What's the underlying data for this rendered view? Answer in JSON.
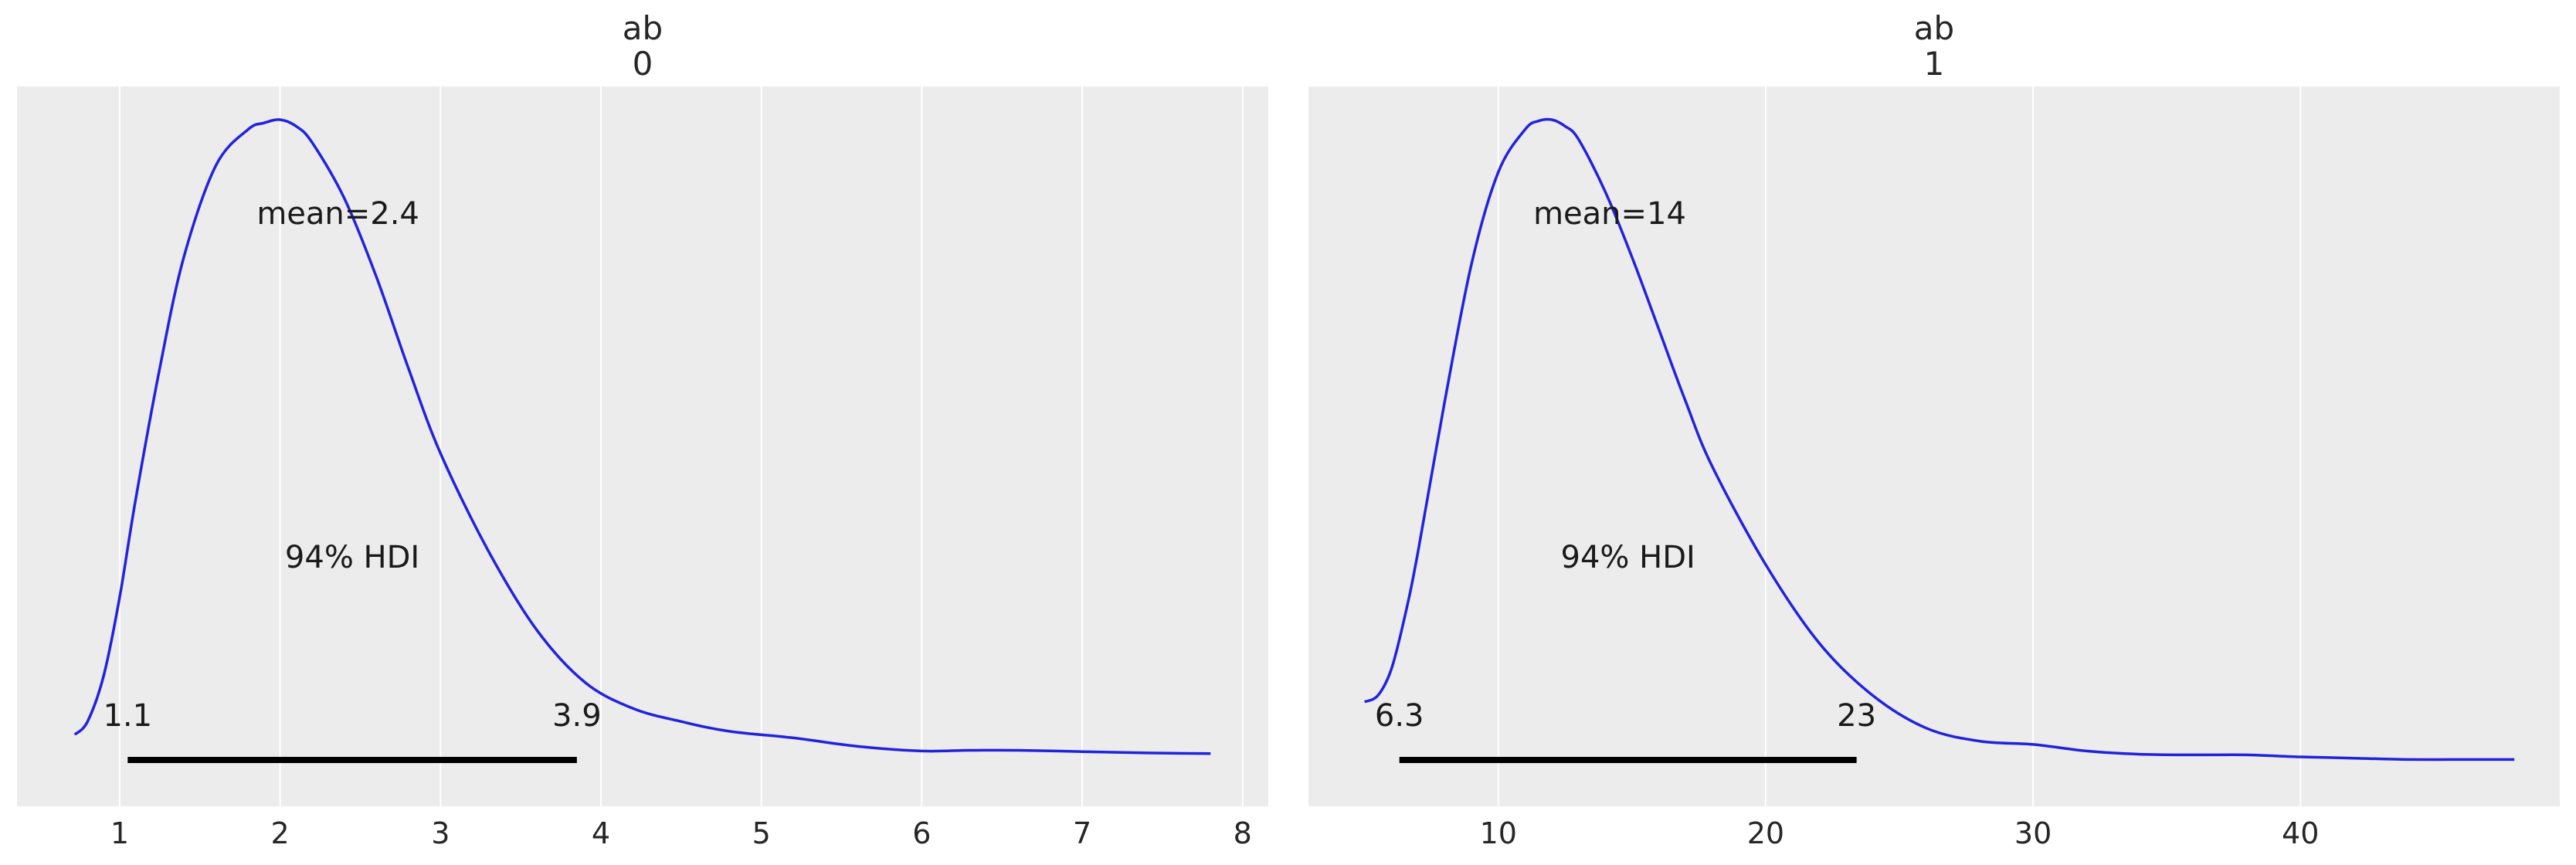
{
  "chart_data": [
    {
      "type": "area",
      "title_lines": [
        "ab",
        "0"
      ],
      "xlim": [
        0.36,
        8.16
      ],
      "xticks": [
        "1",
        "2",
        "3",
        "4",
        "5",
        "6",
        "7",
        "8"
      ],
      "x": [
        0.72,
        0.8,
        0.9,
        1.0,
        1.1,
        1.25,
        1.4,
        1.6,
        1.8,
        1.9,
        2.0,
        2.1,
        2.2,
        2.4,
        2.6,
        2.8,
        3.0,
        3.3,
        3.6,
        3.9,
        4.2,
        4.5,
        4.8,
        5.2,
        5.6,
        6.0,
        6.3,
        6.6,
        7.0,
        7.4,
        7.8
      ],
      "y": [
        0.06,
        0.08,
        0.15,
        0.27,
        0.42,
        0.62,
        0.79,
        0.93,
        0.985,
        0.995,
        1.0,
        0.99,
        0.965,
        0.88,
        0.76,
        0.62,
        0.49,
        0.34,
        0.22,
        0.14,
        0.1,
        0.08,
        0.065,
        0.055,
        0.042,
        0.035,
        0.036,
        0.036,
        0.034,
        0.032,
        0.031
      ],
      "mean_label": "mean=2.4",
      "hdi_label": "94% HDI",
      "hdi": [
        1.05,
        3.85
      ],
      "hdi_low_label": "1.1",
      "hdi_high_label": "3.9",
      "grid": "vertical",
      "line_color": "#2222dd",
      "background": "#ececec"
    },
    {
      "type": "area",
      "title_lines": [
        "ab",
        "1"
      ],
      "xlim": [
        2.9,
        49.7
      ],
      "xticks": [
        "10",
        "20",
        "30",
        "40"
      ],
      "x": [
        5.0,
        5.5,
        6.0,
        6.5,
        7.0,
        8.0,
        9.0,
        10.0,
        11.0,
        11.5,
        12.0,
        12.5,
        13.0,
        14.0,
        15.0,
        16.0,
        17.0,
        18.0,
        20.0,
        22.0,
        24.0,
        26.0,
        28.0,
        30.0,
        32.0,
        34.0,
        36.0,
        38.0,
        40.0,
        42.0,
        44.0,
        46.0,
        48.0
      ],
      "y": [
        0.11,
        0.12,
        0.16,
        0.24,
        0.34,
        0.57,
        0.78,
        0.92,
        0.985,
        0.998,
        1.0,
        0.99,
        0.97,
        0.89,
        0.79,
        0.68,
        0.57,
        0.47,
        0.32,
        0.2,
        0.12,
        0.07,
        0.05,
        0.045,
        0.035,
        0.03,
        0.029,
        0.029,
        0.026,
        0.024,
        0.022,
        0.022,
        0.022
      ],
      "mean_label": "mean=14",
      "hdi_label": "94% HDI",
      "hdi": [
        6.3,
        23.4
      ],
      "hdi_low_label": "6.3",
      "hdi_high_label": "23",
      "grid": "vertical",
      "line_color": "#2222dd",
      "background": "#ececec"
    }
  ]
}
